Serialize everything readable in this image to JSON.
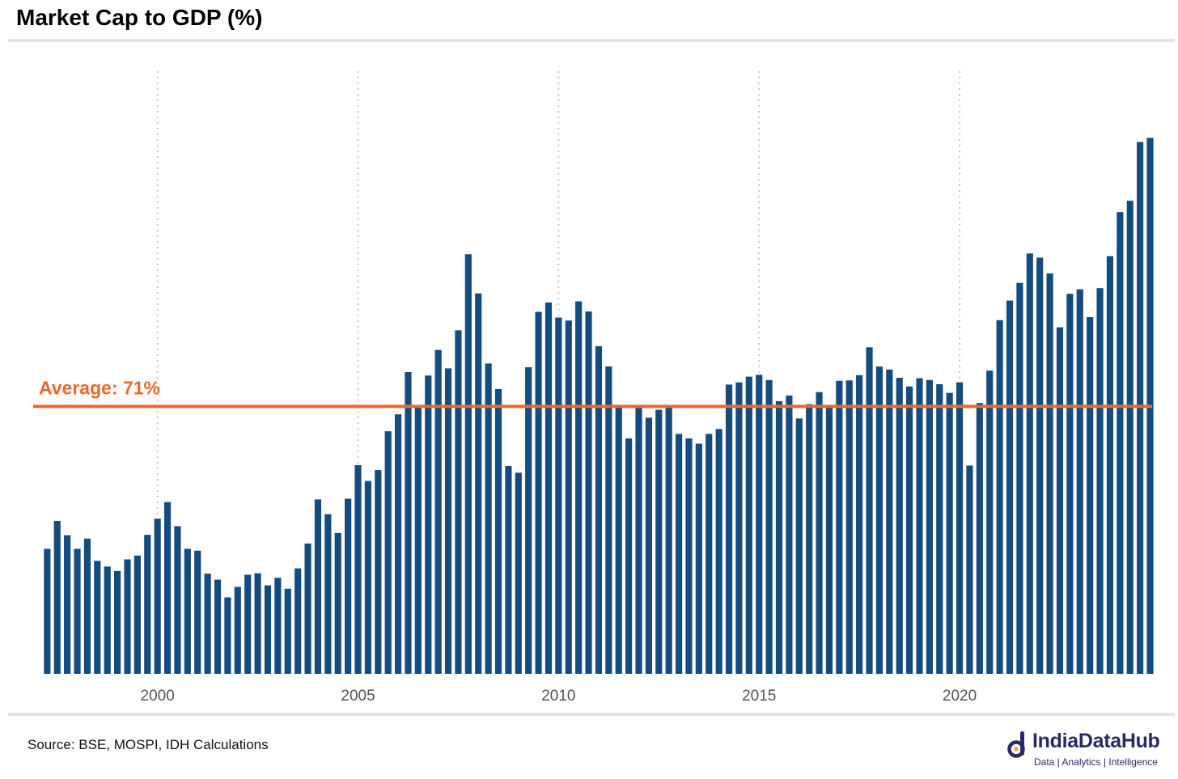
{
  "title": "Market Cap to GDP (%)",
  "source": "Source: BSE, MOSPI, IDH Calculations",
  "logo": {
    "name": "IndiaDataHub",
    "tagline": "Data | Analytics | Intelligence"
  },
  "colors": {
    "bar": "#154c80",
    "average": "#e8692e",
    "grid": "#c8c8c8",
    "axis_text": "#555555",
    "logo": "#2b2a66"
  },
  "chart_data": {
    "type": "bar",
    "frequency": "quarterly",
    "x_start": 1997.25,
    "x_step": 0.25,
    "xlim": [
      1996.9,
      2024.8
    ],
    "ylim": [
      0,
      160
    ],
    "x_ticks": [
      2000,
      2005,
      2010,
      2015,
      2020
    ],
    "x_tick_labels": [
      "2000",
      "2005",
      "2010",
      "2015",
      "2020"
    ],
    "grid": "vertical-dotted",
    "y_axis_visible": false,
    "average": {
      "value": 71,
      "label": "Average: 71%"
    },
    "values": [
      33.2,
      40.6,
      36.8,
      33.2,
      35.9,
      30.0,
      28.5,
      27.3,
      30.4,
      31.4,
      36.9,
      41.2,
      45.6,
      39.2,
      33.2,
      32.7,
      26.6,
      25.0,
      20.3,
      23.1,
      26.3,
      26.7,
      23.5,
      25.5,
      22.6,
      28.0,
      34.6,
      46.3,
      42.4,
      37.4,
      46.5,
      55.4,
      51.2,
      54.1,
      64.4,
      68.9,
      80.1,
      70.9,
      79.2,
      86.0,
      81.1,
      91.2,
      111.4,
      101.0,
      82.4,
      75.6,
      55.2,
      53.4,
      81.4,
      96.1,
      98.6,
      94.6,
      93.8,
      98.9,
      96.2,
      87.0,
      81.6,
      71.0,
      62.5,
      71.2,
      68.0,
      70.1,
      70.8,
      63.7,
      62.5,
      61.1,
      63.7,
      65.0,
      76.8,
      77.4,
      78.9,
      79.4,
      78.0,
      72.4,
      73.9,
      67.8,
      71.6,
      74.8,
      71.0,
      77.8,
      77.9,
      79.3,
      86.7,
      81.6,
      80.8,
      78.6,
      76.3,
      78.5,
      78.0,
      76.9,
      74.6,
      77.4,
      55.3,
      71.9,
      80.5,
      93.9,
      99.1,
      103.8,
      111.6,
      110.5,
      106.3,
      92.0,
      100.9,
      102.1,
      94.7,
      102.4,
      110.9,
      122.6,
      125.6,
      141.2,
      142.3
    ]
  }
}
